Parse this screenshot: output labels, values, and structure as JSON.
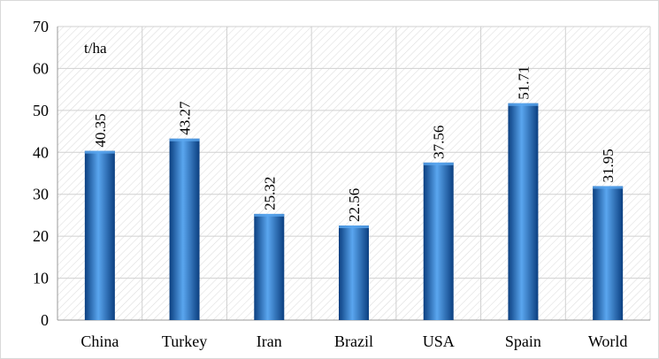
{
  "chart_data": {
    "type": "bar",
    "title": "",
    "xlabel": "",
    "ylabel": "",
    "unit_label": "t/ha",
    "categories": [
      "China",
      "Turkey",
      "Iran",
      "Brazil",
      "USA",
      "Spain",
      "World"
    ],
    "values": [
      40.35,
      43.27,
      25.32,
      22.56,
      37.56,
      51.71,
      31.95
    ],
    "data_labels": [
      "40.35",
      "43.27",
      "25.32",
      "22.56",
      "37.56",
      "51.71",
      "31.95"
    ],
    "y_ticks": [
      "0",
      "10",
      "20",
      "30",
      "40",
      "50",
      "60",
      "70"
    ],
    "ylim": [
      0,
      70
    ],
    "grid": true,
    "legend": "none",
    "bar_color": "#1f6fc4",
    "bar_color_light": "#5aa6ef",
    "bar_color_dark": "#0b3f80"
  }
}
